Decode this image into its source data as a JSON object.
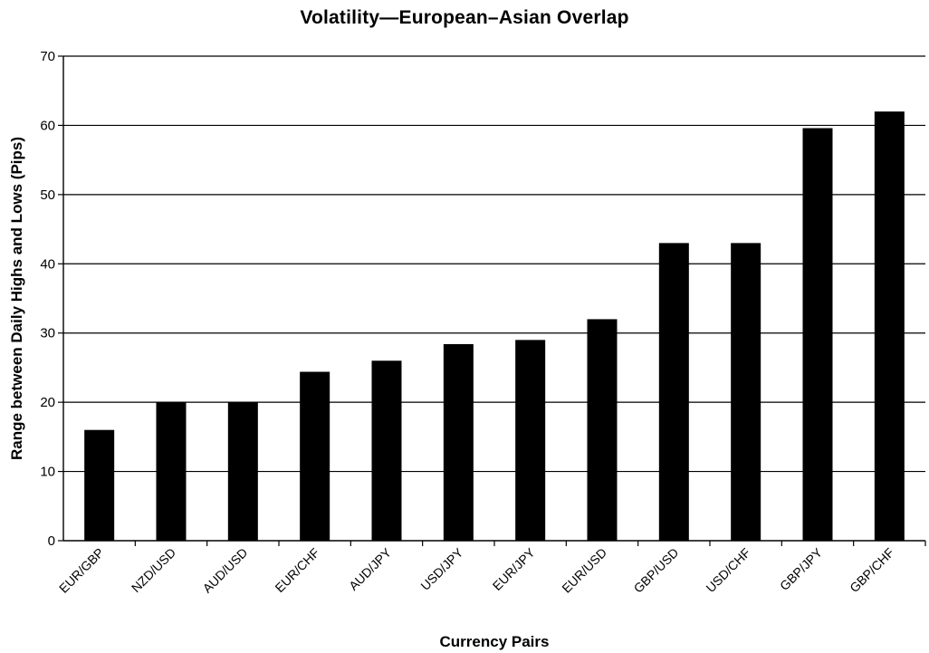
{
  "chart_data": {
    "type": "bar",
    "title": "Volatility—European–Asian Overlap",
    "xlabel": "Currency Pairs",
    "ylabel": "Range between Daily Highs and Lows (Pips)",
    "categories": [
      "EUR/GBP",
      "NZD/USD",
      "AUD/USD",
      "EUR/CHF",
      "AUD/JPY",
      "USD/JPY",
      "EUR/JPY",
      "EUR/USD",
      "GBP/USD",
      "USD/CHF",
      "GBP/JPY",
      "GBP/CHF"
    ],
    "values": [
      16,
      20,
      20,
      24.4,
      26,
      28.4,
      29,
      32,
      43,
      43,
      59.6,
      62
    ],
    "ylim": [
      0,
      70
    ],
    "yticks": [
      0,
      10,
      20,
      30,
      40,
      50,
      60,
      70
    ],
    "grid": true,
    "legend": "none",
    "bar_color": "#000000",
    "grid_color": "#000000"
  }
}
